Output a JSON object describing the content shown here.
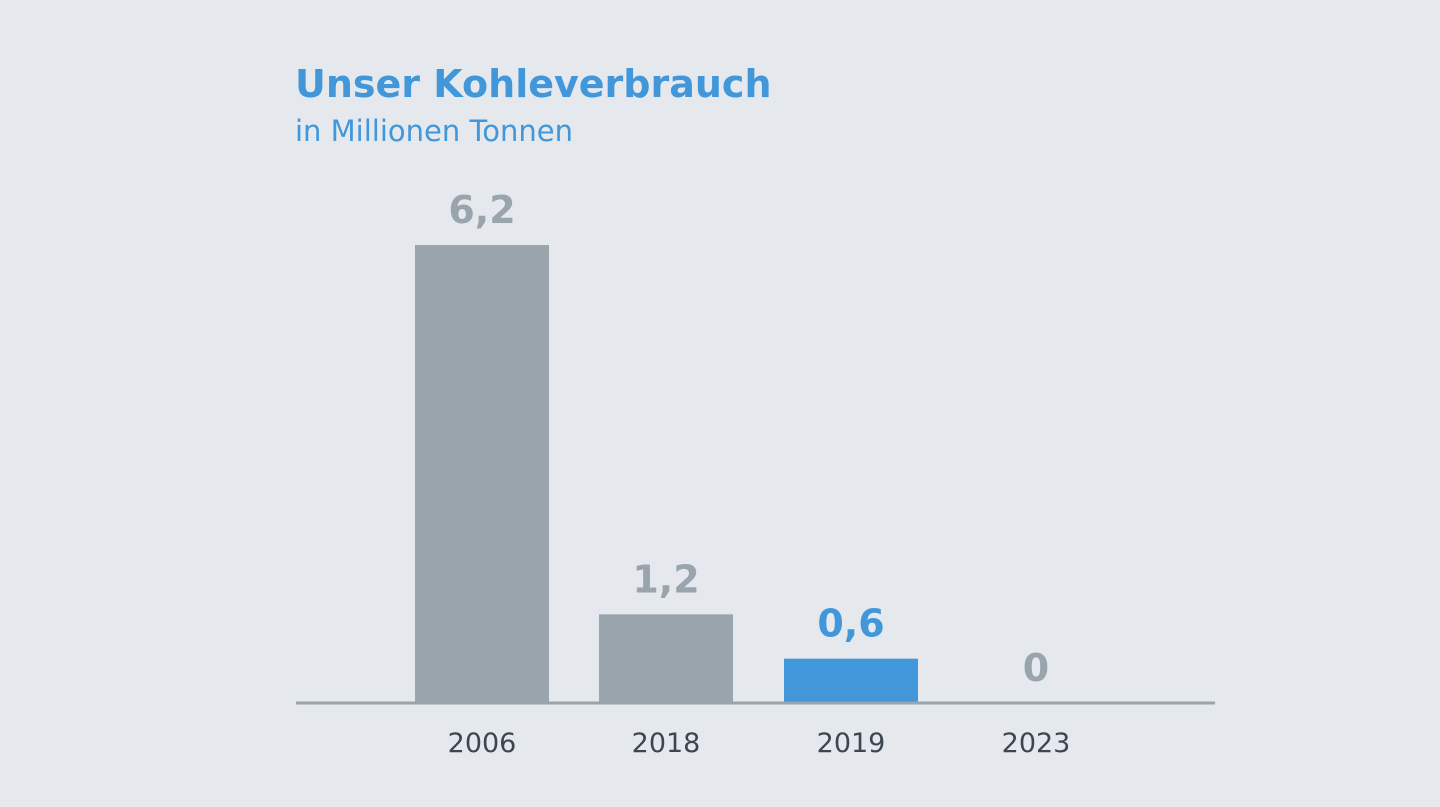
{
  "chart_data": {
    "type": "bar",
    "title": "Unser Kohleverbrauch",
    "subtitle": "in Millionen Tonnen",
    "categories": [
      "2006",
      "2018",
      "2019",
      "2023"
    ],
    "values": [
      6.2,
      1.2,
      0.6,
      0
    ],
    "value_labels": [
      "6,2",
      "1,2",
      "0,6",
      "0"
    ],
    "highlight_index": 2,
    "ylim": [
      0,
      6.2
    ],
    "grid": false,
    "legend": "none",
    "colors": {
      "bar": "#9aa4ad",
      "highlight": "#4197da",
      "label": "#9aa4ad",
      "highlight_label": "#4197da",
      "axis": "#9aa4ad",
      "tick": "#3c4650"
    }
  }
}
